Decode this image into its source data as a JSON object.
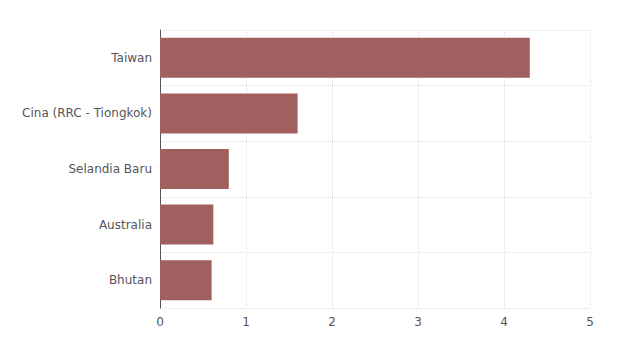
{
  "chart_data": {
    "type": "bar",
    "orientation": "horizontal",
    "categories": [
      "Bhutan",
      "Australia",
      "Selandia Baru",
      "Cina (RRC - Tiongkok)",
      "Taiwan"
    ],
    "values": [
      0.6,
      0.62,
      0.8,
      1.6,
      4.3
    ],
    "color": "#a06060",
    "xlim": [
      0,
      5
    ],
    "xticks": [
      0,
      1,
      2,
      3,
      4,
      5
    ],
    "grid": true
  }
}
